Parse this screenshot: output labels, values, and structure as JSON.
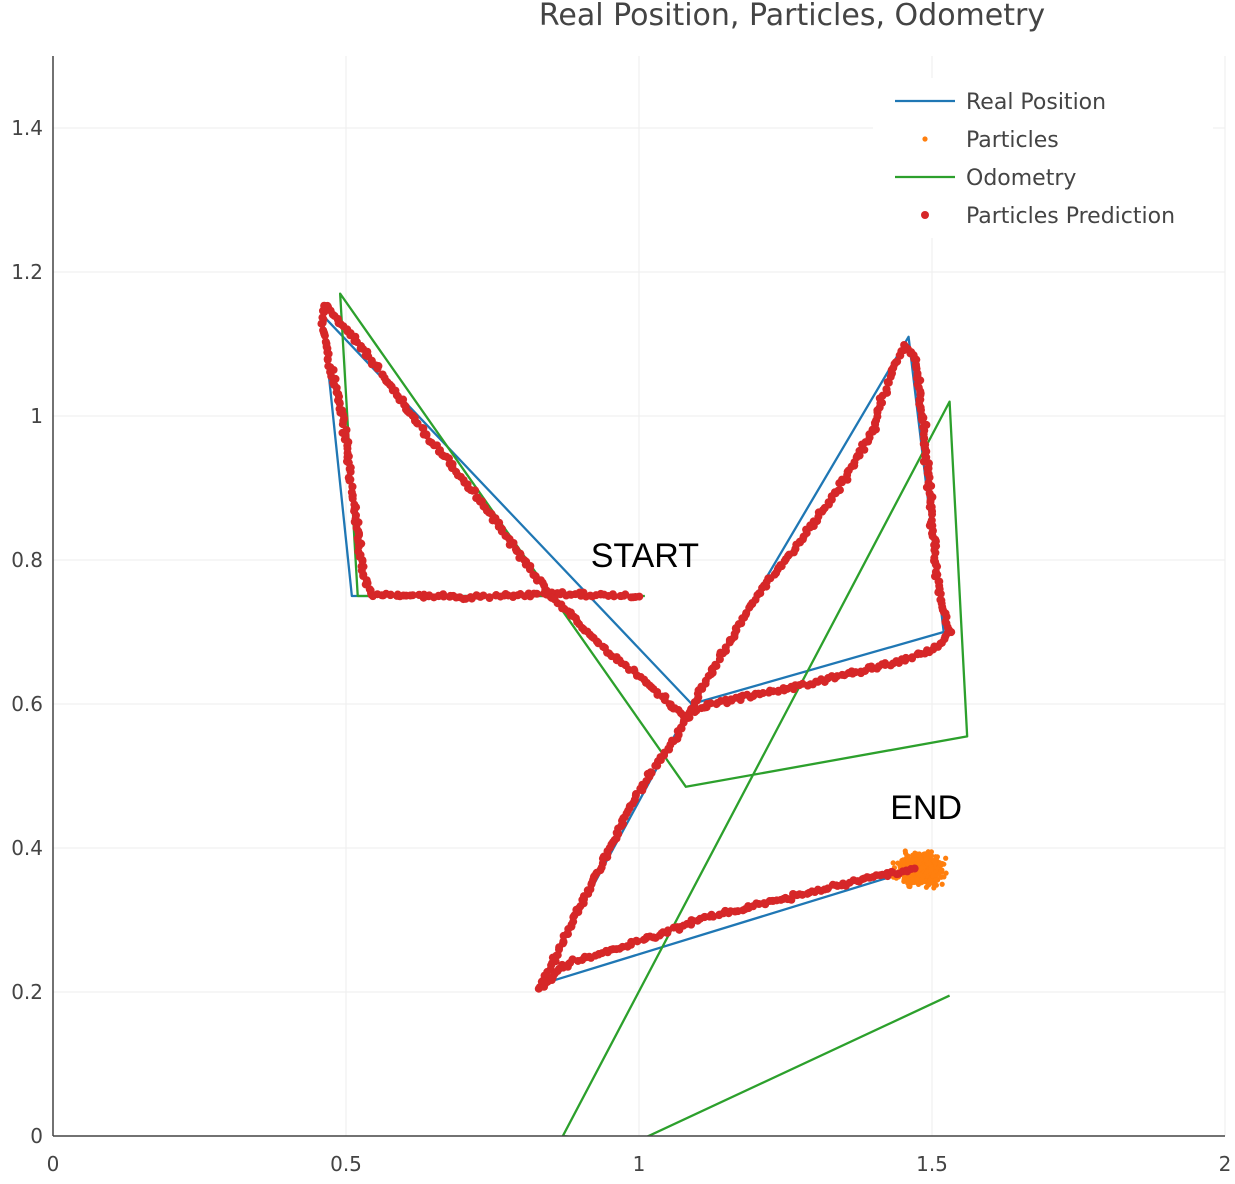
{
  "chart_data": {
    "type": "scatter",
    "title": "Real Position, Particles, Odometry",
    "xlabel": "",
    "ylabel": "",
    "xlim": [
      0,
      2
    ],
    "ylim": [
      0,
      1.5
    ],
    "x_ticks": [
      0,
      0.5,
      1,
      1.5,
      2
    ],
    "x_tick_labels": [
      "0",
      "0.5",
      "1",
      "1.5",
      "2"
    ],
    "y_ticks": [
      0,
      0.2,
      0.4,
      0.6,
      0.8,
      1,
      1.2,
      1.4
    ],
    "y_tick_labels": [
      "0",
      "0.2",
      "0.4",
      "0.6",
      "0.8",
      "1",
      "1.2",
      "1.4"
    ],
    "grid": true,
    "legend_position": "top-right",
    "series": [
      {
        "name": "Real Position",
        "kind": "line",
        "color": "#1f77b4",
        "points": [
          [
            1.0,
            0.75
          ],
          [
            0.51,
            0.75
          ],
          [
            0.46,
            1.14
          ],
          [
            1.09,
            0.6
          ],
          [
            1.46,
            1.11
          ],
          [
            1.52,
            0.7
          ],
          [
            1.09,
            0.6
          ],
          [
            0.83,
            0.21
          ],
          [
            1.47,
            0.37
          ]
        ]
      },
      {
        "name": "Particles",
        "kind": "markers",
        "color": "#ff7f0e",
        "center": [
          1.48,
          0.37
        ],
        "spread": [
          0.035,
          0.02
        ],
        "count": 450
      },
      {
        "name": "Odometry",
        "kind": "line",
        "color": "#2ca02c",
        "points": [
          [
            1.01,
            0.75
          ],
          [
            0.52,
            0.75
          ],
          [
            0.49,
            1.17
          ],
          [
            1.08,
            0.485
          ],
          [
            1.56,
            0.555
          ],
          [
            1.53,
            1.02
          ],
          [
            0.87,
            0.0
          ],
          [
            0.99,
            -0.01
          ],
          [
            1.53,
            0.195
          ]
        ]
      },
      {
        "name": "Particles Prediction",
        "kind": "markers",
        "color": "#d62728",
        "points": [
          [
            1.0,
            0.75
          ],
          [
            0.85,
            0.753
          ],
          [
            0.7,
            0.748
          ],
          [
            0.6,
            0.752
          ],
          [
            0.545,
            0.75
          ],
          [
            0.53,
            0.78
          ],
          [
            0.51,
            0.9
          ],
          [
            0.495,
            1.0
          ],
          [
            0.47,
            1.08
          ],
          [
            0.46,
            1.13
          ],
          [
            0.465,
            1.155
          ],
          [
            0.49,
            1.13
          ],
          [
            0.55,
            1.07
          ],
          [
            0.65,
            0.96
          ],
          [
            0.75,
            0.86
          ],
          [
            0.85,
            0.75
          ],
          [
            0.95,
            0.67
          ],
          [
            1.0,
            0.64
          ],
          [
            1.04,
            0.61
          ],
          [
            1.08,
            0.58
          ],
          [
            1.12,
            0.6
          ],
          [
            1.25,
            0.62
          ],
          [
            1.35,
            0.64
          ],
          [
            1.45,
            0.66
          ],
          [
            1.51,
            0.68
          ],
          [
            1.53,
            0.7
          ],
          [
            1.51,
            0.76
          ],
          [
            1.5,
            0.85
          ],
          [
            1.49,
            0.95
          ],
          [
            1.48,
            1.02
          ],
          [
            1.47,
            1.08
          ],
          [
            1.455,
            1.1
          ],
          [
            1.43,
            1.06
          ],
          [
            1.4,
            0.98
          ],
          [
            1.35,
            0.91
          ],
          [
            1.27,
            0.82
          ],
          [
            1.2,
            0.75
          ],
          [
            1.15,
            0.68
          ],
          [
            1.1,
            0.61
          ],
          [
            1.06,
            0.55
          ],
          [
            1.0,
            0.48
          ],
          [
            0.95,
            0.4
          ],
          [
            0.9,
            0.32
          ],
          [
            0.86,
            0.25
          ],
          [
            0.83,
            0.205
          ],
          [
            0.88,
            0.24
          ],
          [
            1.0,
            0.27
          ],
          [
            1.1,
            0.3
          ],
          [
            1.2,
            0.32
          ],
          [
            1.3,
            0.34
          ],
          [
            1.4,
            0.36
          ],
          [
            1.47,
            0.37
          ]
        ]
      }
    ],
    "annotations": [
      {
        "text": "START",
        "x": 1.01,
        "y": 0.79
      },
      {
        "text": "END",
        "x": 1.49,
        "y": 0.44
      }
    ]
  }
}
